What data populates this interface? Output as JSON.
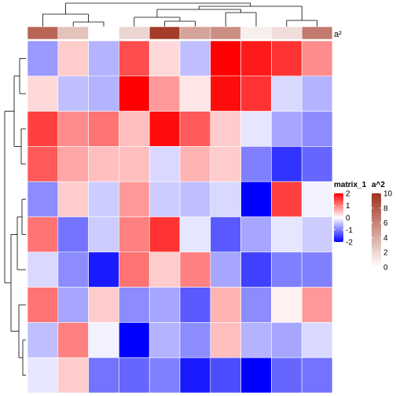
{
  "chart_data": {
    "type": "heatmap",
    "title": "",
    "xlabel": "",
    "ylabel": "",
    "rows": 10,
    "cols": 10,
    "values": [
      [
        -0.8,
        0.4,
        -0.6,
        1.4,
        0.3,
        -0.5,
        2.2,
        1.8,
        1.6,
        0.9
      ],
      [
        0.3,
        -0.5,
        -0.6,
        2.1,
        0.8,
        0.2,
        1.9,
        1.6,
        -0.3,
        -0.6
      ],
      [
        1.5,
        0.9,
        1.1,
        0.5,
        1.9,
        1.3,
        0.4,
        -0.2,
        -0.7,
        -0.9
      ],
      [
        1.3,
        0.7,
        0.5,
        0.5,
        -0.3,
        0.6,
        0.4,
        -1.0,
        -1.6,
        -1.2
      ],
      [
        -0.9,
        0.4,
        -0.4,
        0.8,
        -0.4,
        -0.5,
        -0.3,
        -2.0,
        1.5,
        -0.1
      ],
      [
        1.1,
        -1.1,
        -0.4,
        1.0,
        1.6,
        -0.2,
        -1.3,
        -0.7,
        -0.2,
        -0.4
      ],
      [
        -0.3,
        -0.9,
        -1.8,
        1.1,
        0.4,
        1.0,
        -0.7,
        -1.5,
        -1.0,
        -1.0
      ],
      [
        1.1,
        -0.7,
        0.4,
        -0.9,
        -0.7,
        -1.3,
        0.6,
        -0.9,
        0.1,
        0.8
      ],
      [
        -0.5,
        1.0,
        -0.1,
        -2.0,
        -0.6,
        -0.9,
        0.5,
        -0.6,
        -0.7,
        -0.3
      ],
      [
        -0.2,
        0.4,
        -1.1,
        -1.2,
        -1.0,
        -1.8,
        -1.4,
        -2.0,
        -1.2,
        -1.1
      ]
    ],
    "annotation": {
      "name": "a^2",
      "label": "a²",
      "values": [
        7.5,
        3.0,
        0.0,
        2.0,
        9.5,
        4.5,
        5.5,
        0.8,
        1.6,
        6.5
      ]
    },
    "legends": [
      {
        "title": "matrix_1",
        "ticks": [
          "2",
          "1",
          "0",
          "-1",
          "-2"
        ],
        "tick_values": [
          2,
          1,
          0,
          -1,
          -2
        ],
        "low_color": "#0000FF",
        "mid_color": "#FFFFFF",
        "high_color": "#FF0000"
      },
      {
        "title": "a^2",
        "ticks": [
          "10",
          "8",
          "6",
          "4",
          "2",
          "0"
        ],
        "tick_values": [
          10,
          8,
          6,
          4,
          2,
          0
        ],
        "low_color": "#FFFFFF",
        "high_color": "#A0321E"
      }
    ]
  }
}
